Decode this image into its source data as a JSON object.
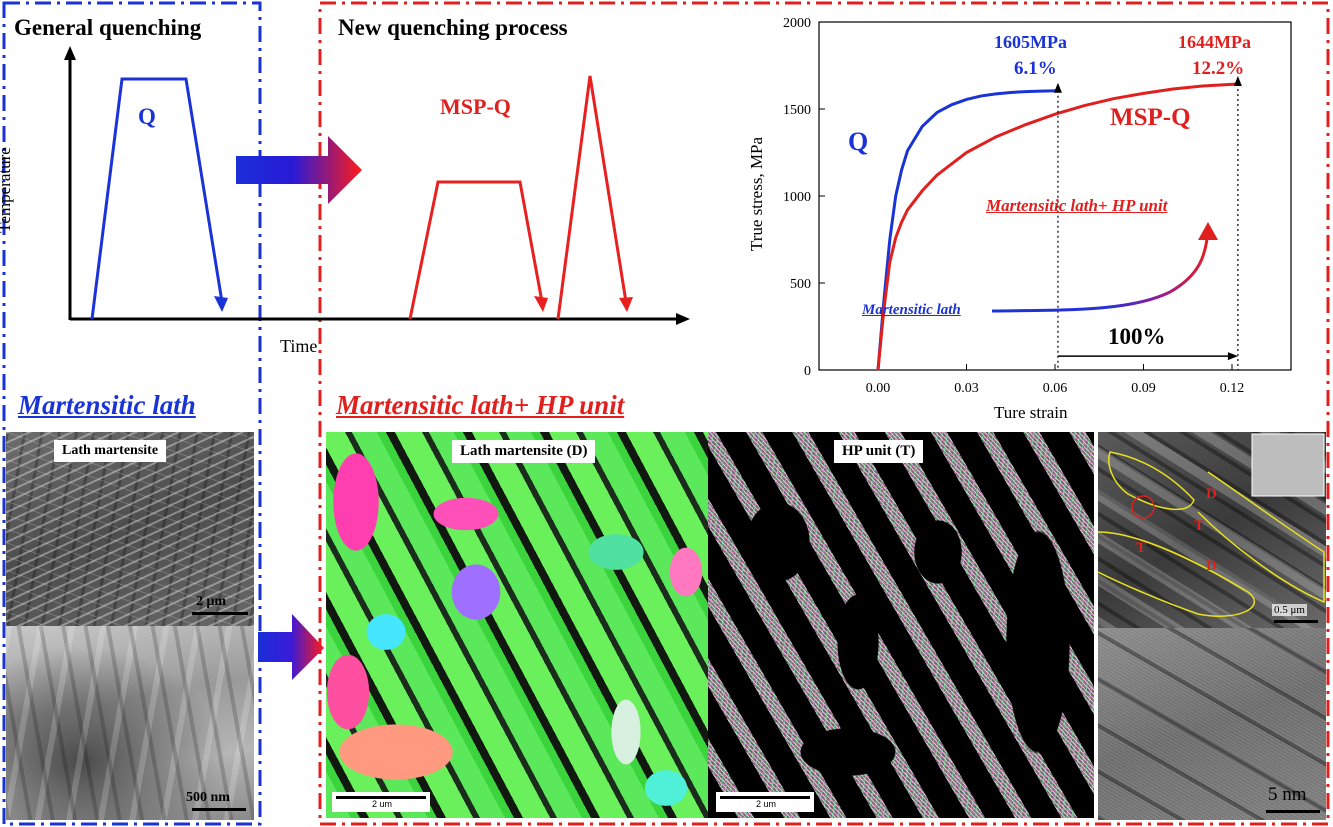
{
  "left_panel": {
    "title": "General quenching",
    "process_label": "Q",
    "subtitle": "Martensitic lath",
    "sem_tag": "Lath martensite",
    "sem_scale": "2 μm",
    "tem_scale": "500 nm",
    "border_color": "#1a33d6"
  },
  "right_panel": {
    "title": "New quenching process",
    "process_label": "MSP-Q",
    "subtitle": "Martensitic lath+ HP unit",
    "ebsd_d_tag": "Lath martensite (D)",
    "ebsd_t_tag": "HP unit (T)",
    "ebsd_scale_1": "2 um",
    "ebsd_scale_2": "2 um",
    "tem_labels": [
      "T",
      "T",
      "D",
      "D"
    ],
    "tem_scale": "0.5 μm",
    "hrtem_scale": "5 nm",
    "border_color": "#e0201f"
  },
  "schematic": {
    "y_axis_label": "Temperature",
    "x_axis_label": "Time"
  },
  "chart_data": {
    "type": "line",
    "xlabel": "Ture strain",
    "ylabel": "True stress, MPa",
    "xlim": [
      -0.02,
      0.14
    ],
    "ylim": [
      0,
      2000
    ],
    "x_ticks": [
      "0.00",
      "0.03",
      "0.06",
      "0.09",
      "0.12"
    ],
    "y_ticks": [
      "0",
      "500",
      "1000",
      "1500",
      "2000"
    ],
    "series": [
      {
        "name": "Q",
        "color": "#1a33d6",
        "x": [
          0.0,
          0.002,
          0.004,
          0.006,
          0.008,
          0.01,
          0.015,
          0.02,
          0.025,
          0.03,
          0.035,
          0.04,
          0.045,
          0.05,
          0.055,
          0.061
        ],
        "y": [
          0,
          400,
          750,
          1000,
          1150,
          1260,
          1400,
          1480,
          1525,
          1555,
          1575,
          1587,
          1595,
          1600,
          1603,
          1605
        ]
      },
      {
        "name": "MSP-Q",
        "color": "#e0201f",
        "x": [
          0.0,
          0.002,
          0.004,
          0.006,
          0.008,
          0.01,
          0.015,
          0.02,
          0.03,
          0.04,
          0.05,
          0.06,
          0.07,
          0.08,
          0.09,
          0.1,
          0.11,
          0.122
        ],
        "y": [
          0,
          350,
          620,
          760,
          850,
          920,
          1030,
          1120,
          1250,
          1340,
          1410,
          1470,
          1520,
          1560,
          1590,
          1615,
          1632,
          1644
        ]
      }
    ],
    "annotations": {
      "q_stress": "1605MPa",
      "q_strain": "6.1%",
      "mspq_stress": "1644MPa",
      "mspq_strain": "12.2%",
      "increase": "100%",
      "lath_label": "Martensitic lath",
      "hp_label": "Martensitic lath+ HP unit",
      "q_curve_label": "Q",
      "mspq_curve_label": "MSP-Q"
    }
  }
}
